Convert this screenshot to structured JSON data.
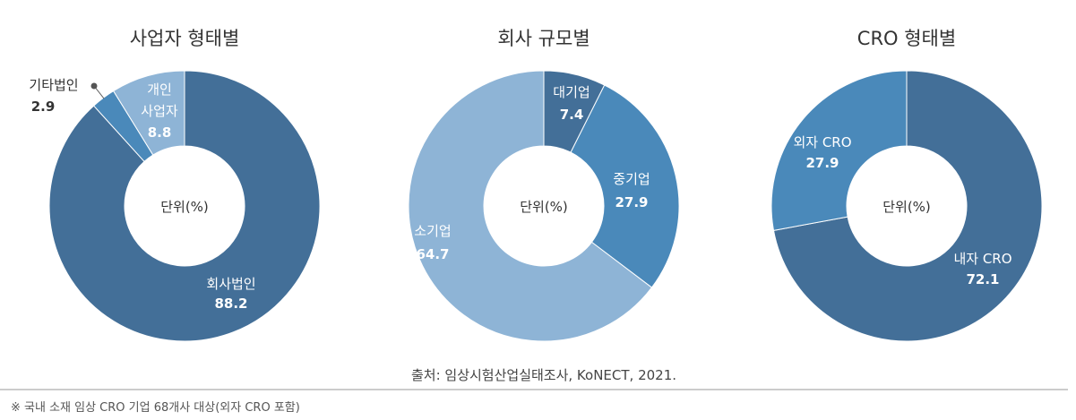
{
  "chart_data": [
    {
      "type": "pie",
      "title": "사업자 형태별",
      "center_label": "단위(%)",
      "categories": [
        "회사법인",
        "기타법인",
        "개인 사업자"
      ],
      "values": [
        88.2,
        2.9,
        8.8
      ],
      "colors": [
        "#436f98",
        "#4a89ba",
        "#8eb4d6"
      ]
    },
    {
      "type": "pie",
      "title": "회사 규모별",
      "center_label": "단위(%)",
      "categories": [
        "대기업",
        "중기업",
        "소기업"
      ],
      "values": [
        7.4,
        27.9,
        64.7
      ],
      "colors": [
        "#436f98",
        "#4a89ba",
        "#8eb4d6"
      ]
    },
    {
      "type": "pie",
      "title": "CRO 형태별",
      "center_label": "단위(%)",
      "categories": [
        "내자 CRO",
        "외자 CRO"
      ],
      "values": [
        72.1,
        27.9
      ],
      "colors": [
        "#436f98",
        "#4a89ba"
      ]
    }
  ],
  "source": "출처: 임상시험산업실태조사, KoNECT, 2021.",
  "footnote": "※ 국내 소재 임상 CRO 기업 68개사 대상(외자 CRO 포함)"
}
